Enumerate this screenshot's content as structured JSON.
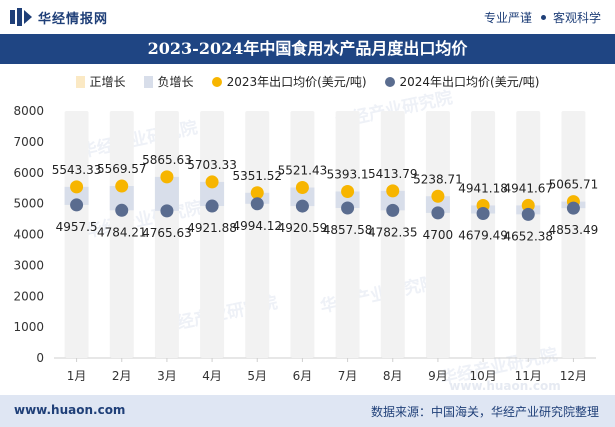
{
  "header": {
    "brand_name": "华经情报网",
    "tagline_1": "专业严谨",
    "tagline_2": "客观科学"
  },
  "colors": {
    "title_band": "#1f4583",
    "positive_bar": "#fbe9c4",
    "negative_bar": "#d8deea",
    "series_2023": "#f7b500",
    "series_2024": "#5a6c8f",
    "bar_track": "#f2f2f2"
  },
  "chart_data": {
    "type": "line",
    "title": "2023-2024年中国食用水产品月度出口均价",
    "legend": [
      {
        "label": "正增长",
        "kind": "bar",
        "color": "#fbe9c4"
      },
      {
        "label": "负增长",
        "kind": "bar",
        "color": "#d8deea"
      },
      {
        "label": "2023年出口均价(美元/吨)",
        "kind": "dot",
        "color": "#f7b500"
      },
      {
        "label": "2024年出口均价(美元/吨)",
        "kind": "dot",
        "color": "#5a6c8f"
      }
    ],
    "categories": [
      "1月",
      "2月",
      "3月",
      "4月",
      "5月",
      "6月",
      "7月",
      "8月",
      "9月",
      "10月",
      "11月",
      "12月"
    ],
    "series": [
      {
        "name": "2023年出口均价(美元/吨)",
        "values": [
          5543.33,
          5569.57,
          5865.63,
          5703.33,
          5351.52,
          5521.43,
          5393.1,
          5413.79,
          5238.71,
          4941.18,
          4941.67,
          5065.71
        ]
      },
      {
        "name": "2024年出口均价(美元/吨)",
        "values": [
          4957.5,
          4784.21,
          4765.63,
          4921.88,
          4994.12,
          4920.59,
          4857.58,
          4782.35,
          4700,
          4679.49,
          4652.38,
          4853.49
        ]
      }
    ],
    "labels_2023": [
      "5543.33",
      "5569.57",
      "5865.63",
      "5703.33",
      "5351.52",
      "5521.43",
      "5393.1",
      "5413.79",
      "5238.71",
      "4941.18",
      "4941.67",
      "5065.71"
    ],
    "labels_2024": [
      "4957.5",
      "4784.21",
      "4765.63",
      "4921.88",
      "4994.12",
      "4920.59",
      "4857.58",
      "4782.35",
      "4700",
      "4679.49",
      "4652.38",
      "4853.49"
    ],
    "y_ticks": [
      "0",
      "1000",
      "2000",
      "3000",
      "4000",
      "5000",
      "6000",
      "7000",
      "8000"
    ],
    "ylim": [
      0,
      8000
    ],
    "grid": false,
    "legend_position": "top-center"
  },
  "watermark": "华经产业研究院",
  "watermark_url": "www.huaon.com",
  "footer": {
    "website": "www.huaon.com",
    "source": "数据来源：中国海关，华经产业研究院整理"
  }
}
